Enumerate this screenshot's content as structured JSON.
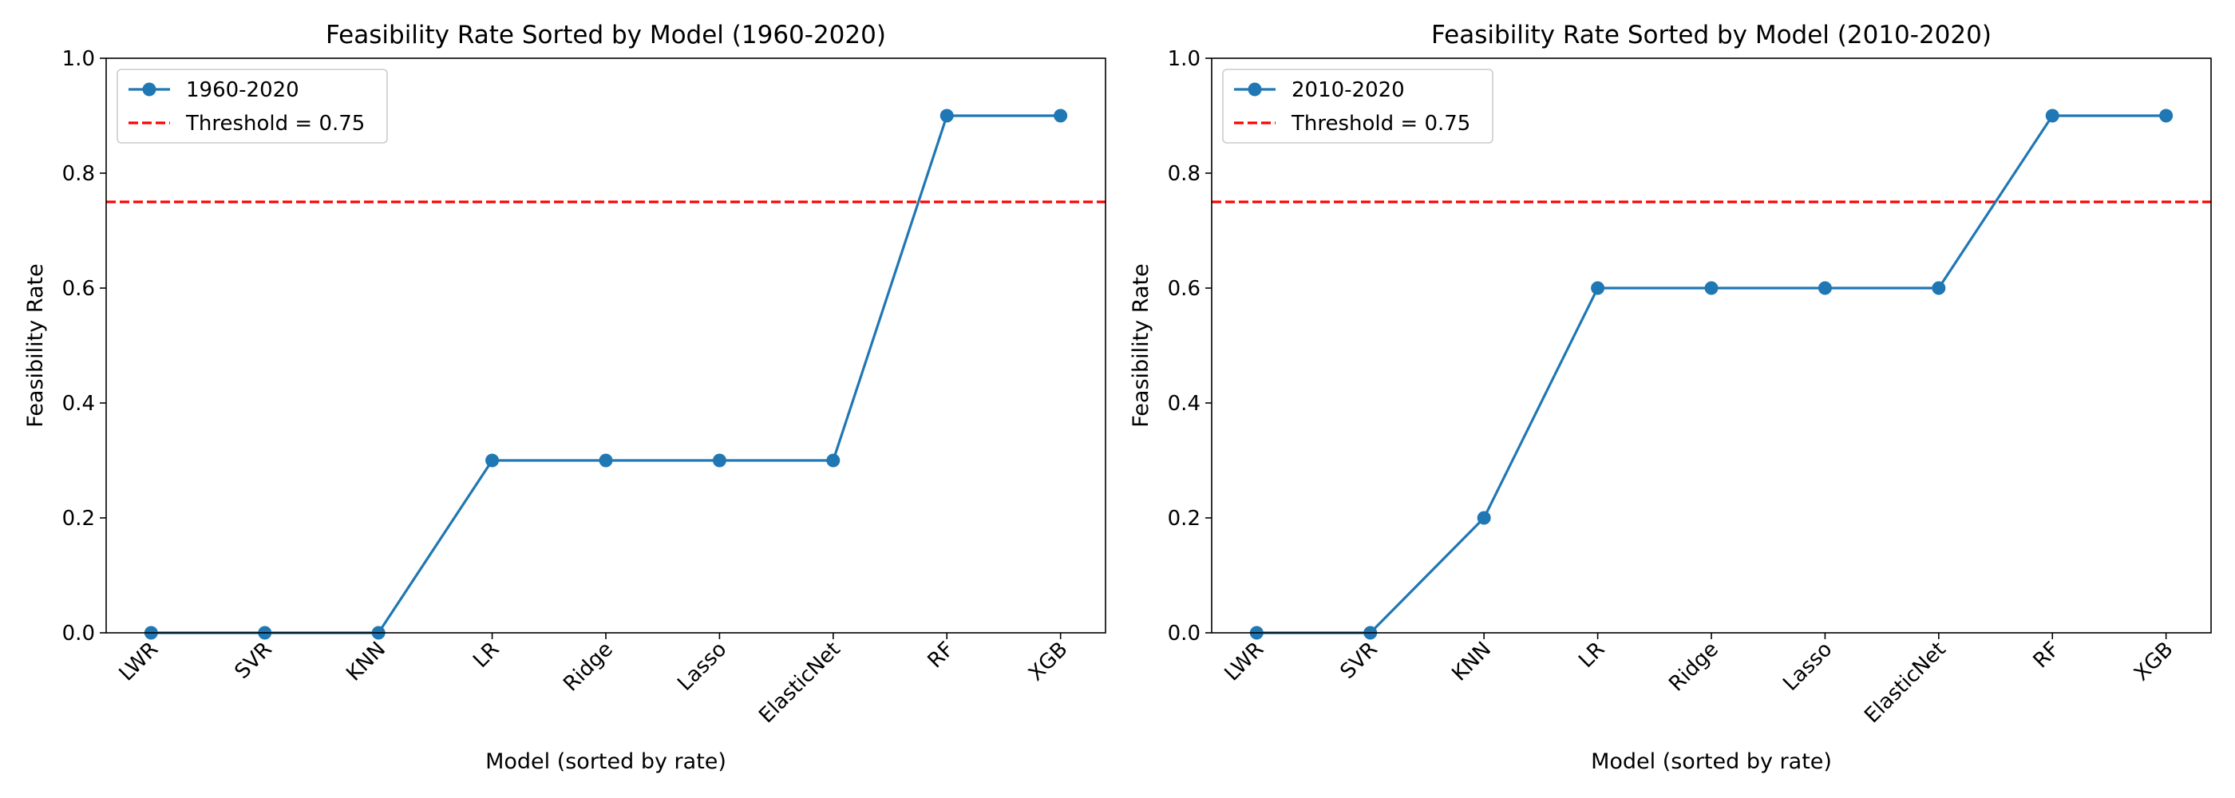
{
  "chart_data": [
    {
      "type": "line",
      "title": "Feasibility Rate Sorted by Model (1960-2020)",
      "xlabel": "Model (sorted by rate)",
      "ylabel": "Feasibility Rate",
      "categories": [
        "LWR",
        "SVR",
        "KNN",
        "LR",
        "Ridge",
        "Lasso",
        "ElasticNet",
        "RF",
        "XGB"
      ],
      "series": [
        {
          "name": "1960-2020",
          "values": [
            0.0,
            0.0,
            0.0,
            0.3,
            0.3,
            0.3,
            0.3,
            0.9,
            0.9
          ],
          "color": "#1f77b4",
          "marker": "circle"
        }
      ],
      "threshold": {
        "label": "Threshold = 0.75",
        "value": 0.75,
        "color": "#ff0000",
        "style": "dashed"
      },
      "ylim": [
        0,
        1.0
      ],
      "yticks": [
        "0.0",
        "0.2",
        "0.4",
        "0.6",
        "0.8",
        "1.0"
      ],
      "grid": false,
      "legend_position": "top-left"
    },
    {
      "type": "line",
      "title": "Feasibility Rate Sorted by Model (2010-2020)",
      "xlabel": "Model (sorted by rate)",
      "ylabel": "Feasibility Rate",
      "categories": [
        "LWR",
        "SVR",
        "KNN",
        "LR",
        "Ridge",
        "Lasso",
        "ElasticNet",
        "RF",
        "XGB"
      ],
      "series": [
        {
          "name": "2010-2020",
          "values": [
            0.0,
            0.0,
            0.2,
            0.6,
            0.6,
            0.6,
            0.6,
            0.9,
            0.9
          ],
          "color": "#1f77b4",
          "marker": "circle"
        }
      ],
      "threshold": {
        "label": "Threshold = 0.75",
        "value": 0.75,
        "color": "#ff0000",
        "style": "dashed"
      },
      "ylim": [
        0,
        1.0
      ],
      "yticks": [
        "0.0",
        "0.2",
        "0.4",
        "0.6",
        "0.8",
        "1.0"
      ],
      "grid": false,
      "legend_position": "top-left"
    }
  ]
}
